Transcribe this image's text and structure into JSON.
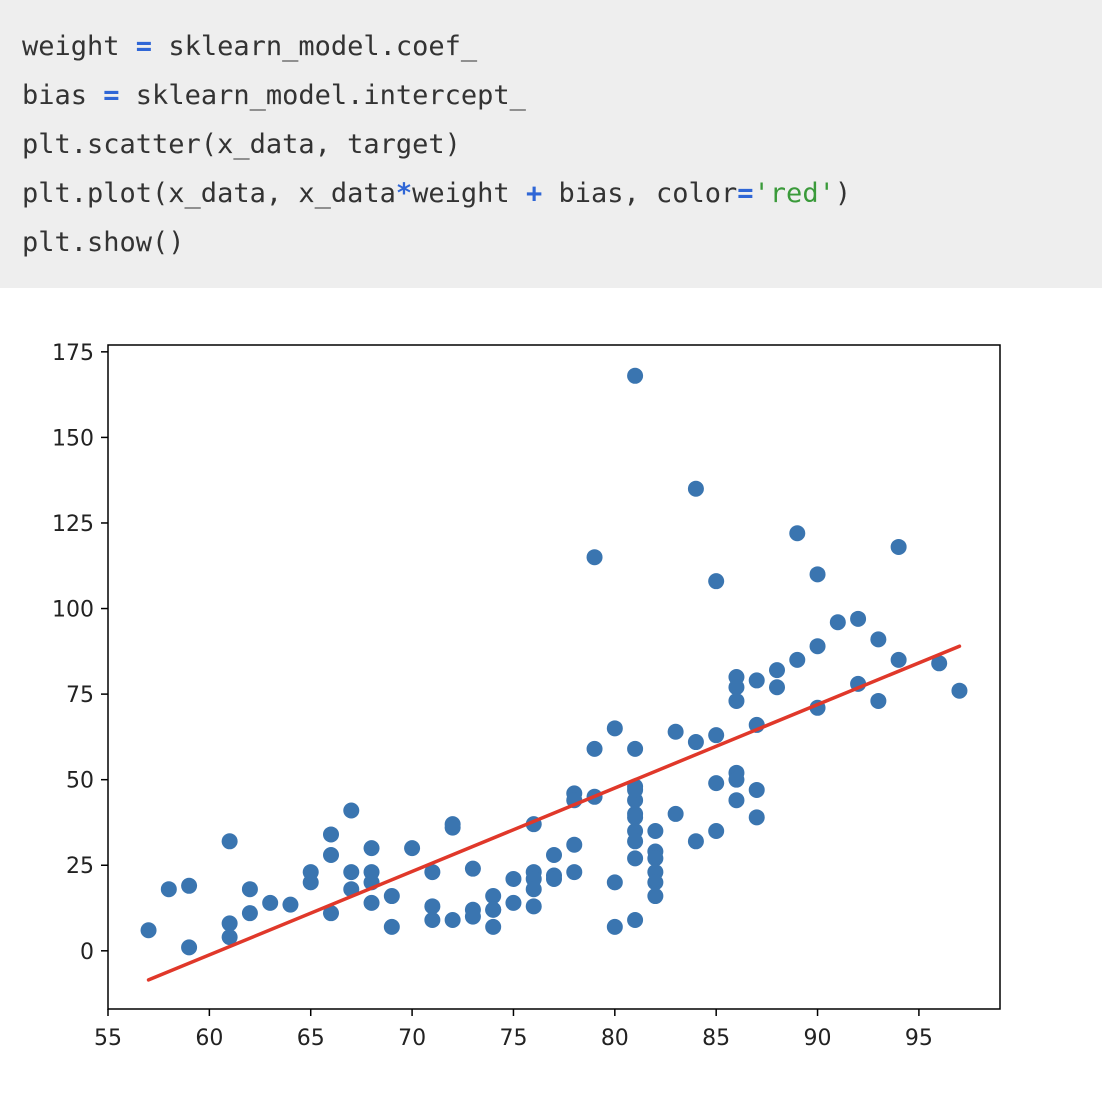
{
  "code": {
    "lines": [
      [
        {
          "t": "weight ",
          "c": "plain"
        },
        {
          "t": "=",
          "c": "op"
        },
        {
          "t": " sklearn_model.coef_",
          "c": "plain"
        }
      ],
      [
        {
          "t": "bias ",
          "c": "plain"
        },
        {
          "t": "=",
          "c": "op"
        },
        {
          "t": " sklearn_model.intercept_",
          "c": "plain"
        }
      ],
      [
        {
          "t": "plt.scatter(x_data, target)",
          "c": "plain"
        }
      ],
      [
        {
          "t": "plt.plot(x_data, x_data",
          "c": "plain"
        },
        {
          "t": "*",
          "c": "op"
        },
        {
          "t": "weight ",
          "c": "plain"
        },
        {
          "t": "+",
          "c": "op"
        },
        {
          "t": " bias, color",
          "c": "plain"
        },
        {
          "t": "=",
          "c": "op"
        },
        {
          "t": "'red'",
          "c": "str"
        },
        {
          "t": ")",
          "c": "plain"
        }
      ],
      [
        {
          "t": "plt.show()",
          "c": "plain"
        }
      ]
    ]
  },
  "chart_data": {
    "type": "scatter",
    "title": "",
    "xlabel": "",
    "ylabel": "",
    "xlim": [
      55,
      99
    ],
    "ylim": [
      -17,
      177
    ],
    "xticks": [
      55,
      60,
      65,
      70,
      75,
      80,
      85,
      90,
      95
    ],
    "yticks": [
      0,
      25,
      50,
      75,
      100,
      125,
      150,
      175
    ],
    "grid": false,
    "colors": {
      "points": "#3a75b0",
      "line": "#e0382a"
    },
    "series": [
      {
        "kind": "scatter",
        "x": [
          57,
          58,
          59,
          59,
          61,
          61,
          61,
          62,
          62,
          63,
          64,
          65,
          65,
          66,
          66,
          66,
          67,
          67,
          67,
          68,
          68,
          68,
          68,
          69,
          69,
          70,
          71,
          71,
          71,
          72,
          72,
          72,
          73,
          73,
          73,
          74,
          74,
          74,
          74,
          75,
          75,
          76,
          76,
          76,
          76,
          76,
          77,
          77,
          77,
          78,
          78,
          78,
          78,
          79,
          79,
          79,
          80,
          80,
          80,
          81,
          81,
          81,
          81,
          81,
          81,
          81,
          81,
          81,
          81,
          81,
          82,
          82,
          82,
          82,
          82,
          82,
          83,
          83,
          84,
          84,
          84,
          85,
          85,
          85,
          85,
          86,
          86,
          86,
          86,
          86,
          86,
          87,
          87,
          87,
          87,
          88,
          88,
          89,
          89,
          90,
          90,
          90,
          91,
          92,
          92,
          93,
          93,
          94,
          94,
          96,
          97
        ],
        "y": [
          6,
          18,
          19,
          1,
          32,
          8,
          4,
          18,
          11,
          14,
          13.5,
          23,
          20,
          34,
          28,
          11,
          41,
          23,
          18,
          30,
          23,
          20,
          14,
          16,
          7,
          30,
          23,
          13,
          9,
          37,
          36,
          9,
          24,
          12,
          10,
          16,
          12,
          12,
          7,
          21,
          14,
          37,
          23,
          21,
          18,
          13,
          28,
          22,
          21,
          46,
          44,
          31,
          23,
          115,
          59,
          45,
          65,
          20,
          7,
          168,
          59,
          48,
          44,
          39,
          35,
          32,
          27,
          9,
          47,
          40,
          35,
          29,
          27,
          23,
          20,
          16,
          64,
          40,
          135,
          61,
          32,
          108,
          63,
          49,
          35,
          80,
          77,
          73,
          52,
          50,
          44,
          79,
          66,
          47,
          39,
          82,
          77,
          122,
          85,
          110,
          89,
          71,
          96,
          97,
          78,
          91,
          73,
          118,
          85,
          84,
          76
        ]
      },
      {
        "kind": "line",
        "x": [
          57,
          97
        ],
        "y": [
          -8.5,
          89
        ]
      }
    ]
  }
}
